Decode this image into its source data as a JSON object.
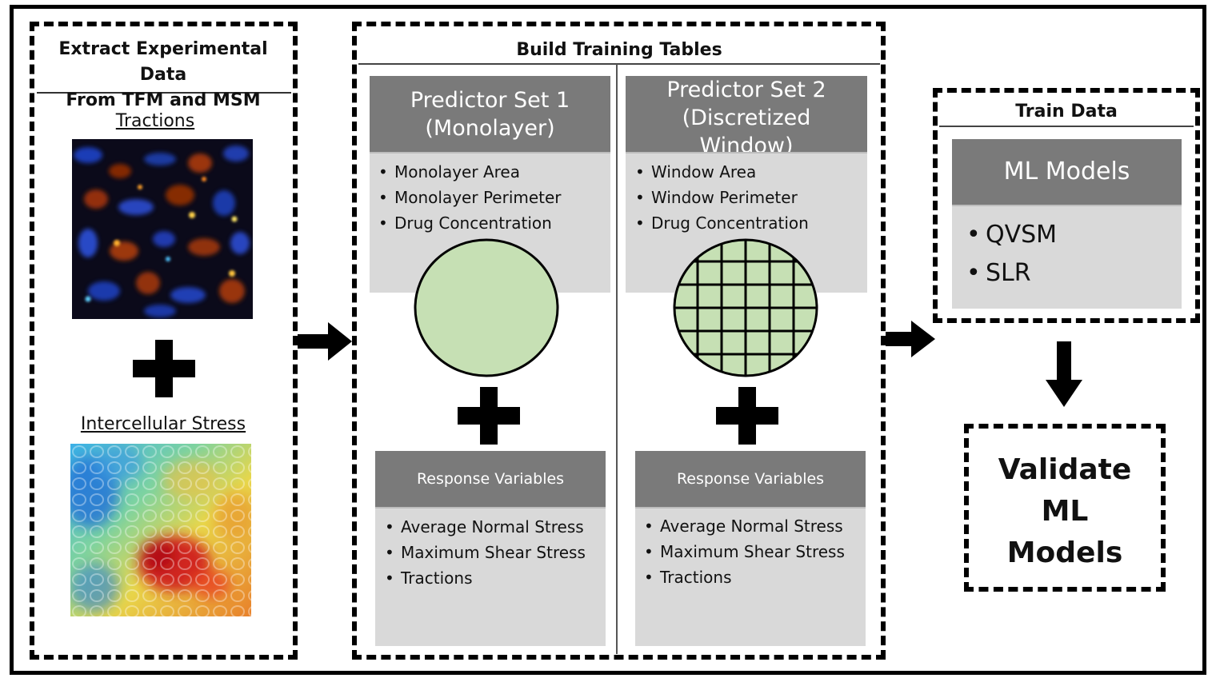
{
  "extract": {
    "title_line1": "Extract Experimental Data",
    "title_line2": "From TFM and MSM",
    "tractions_label": "Tractions",
    "stress_label": "Intercellular Stress"
  },
  "build": {
    "title": "Build Training Tables",
    "predictor1": {
      "title_line1": "Predictor Set 1",
      "title_line2": "(Monolayer)",
      "items": [
        "Monolayer Area",
        "Monolayer Perimeter",
        "Drug Concentration"
      ]
    },
    "predictor2": {
      "title_line1": "Predictor Set 2",
      "title_line2": "(Discretized",
      "title_line3": "Window)",
      "items": [
        "Window Area",
        "Window Perimeter",
        "Drug Concentration"
      ]
    },
    "response1": {
      "title": "Response Variables",
      "items": [
        "Average Normal Stress",
        "Maximum Shear Stress",
        "Tractions"
      ]
    },
    "response2": {
      "title": "Response Variables",
      "items": [
        "Average Normal Stress",
        "Maximum Shear Stress",
        "Tractions"
      ]
    }
  },
  "train": {
    "title": "Train Data",
    "card_title": "ML Models",
    "items": [
      "QVSM",
      "SLR"
    ]
  },
  "validate": {
    "line1": "Validate",
    "line2": "ML",
    "line3": "Models"
  },
  "colors": {
    "card_header": "#7a7a7a",
    "card_body": "#d9d9d9",
    "circle_fill": "#c6e0b4"
  }
}
